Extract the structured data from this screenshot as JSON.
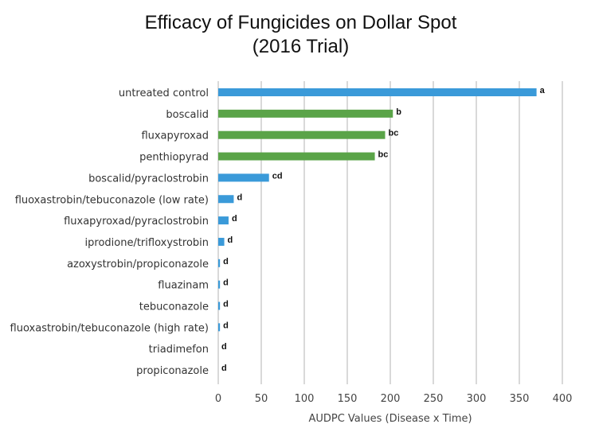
{
  "chart_data": {
    "type": "bar",
    "orientation": "horizontal",
    "title": "Efficacy of Fungicides on Dollar Spot",
    "subtitle": "(2016 Trial)",
    "xlabel": "AUDPC Values (Disease x Time)",
    "ylabel": "",
    "xlim": [
      0,
      400
    ],
    "x_ticks": [
      0,
      50,
      100,
      150,
      200,
      250,
      300,
      350,
      400
    ],
    "grid": "vertical",
    "legend": "none",
    "colors": {
      "blue": "#3a9ad9",
      "green": "#5aa448",
      "grid": "#d9d9d9"
    },
    "bars": [
      {
        "category": "untreated control",
        "value": 370,
        "significance": "a",
        "color": "blue"
      },
      {
        "category": "boscalid",
        "value": 203,
        "significance": "b",
        "color": "green"
      },
      {
        "category": "fluxapyroxad",
        "value": 194,
        "significance": "bc",
        "color": "green"
      },
      {
        "category": "penthiopyrad",
        "value": 182,
        "significance": "bc",
        "color": "green"
      },
      {
        "category": "boscalid/pyraclostrobin",
        "value": 59,
        "significance": "cd",
        "color": "blue"
      },
      {
        "category": "fluoxastrobin/tebuconazole (low rate)",
        "value": 18,
        "significance": "d",
        "color": "blue"
      },
      {
        "category": "fluxapyroxad/pyraclostrobin",
        "value": 12,
        "significance": "d",
        "color": "blue"
      },
      {
        "category": "iprodione/trifloxystrobin",
        "value": 7,
        "significance": "d",
        "color": "blue"
      },
      {
        "category": "azoxystrobin/propiconazole",
        "value": 2,
        "significance": "d",
        "color": "blue"
      },
      {
        "category": "fluazinam",
        "value": 2,
        "significance": "d",
        "color": "blue"
      },
      {
        "category": "tebuconazole",
        "value": 2,
        "significance": "d",
        "color": "blue"
      },
      {
        "category": "fluoxastrobin/tebuconazole (high rate)",
        "value": 2,
        "significance": "d",
        "color": "blue"
      },
      {
        "category": "triadimefon",
        "value": 0,
        "significance": "d",
        "color": "blue"
      },
      {
        "category": "propiconazole",
        "value": 0,
        "significance": "d",
        "color": "blue"
      }
    ]
  }
}
